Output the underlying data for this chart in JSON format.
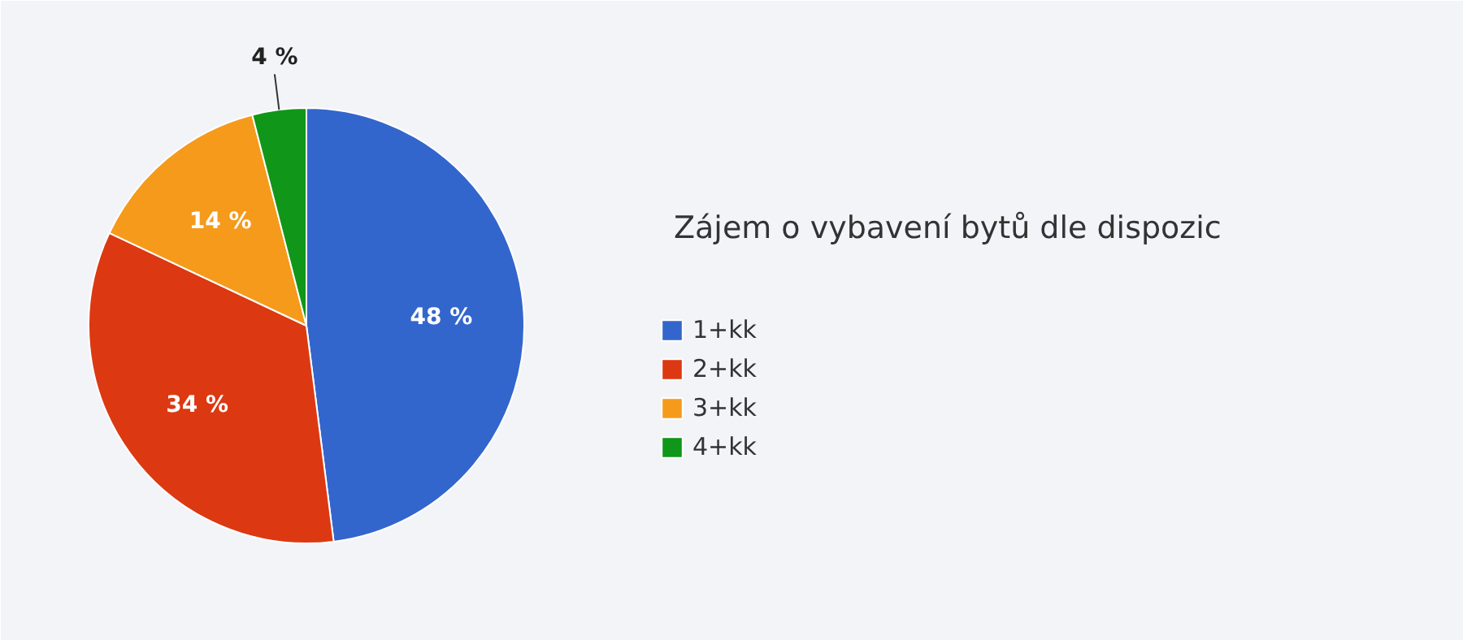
{
  "chart_data": {
    "type": "pie",
    "title": "Zájem o vybavení bytů dle dispozic",
    "categories": [
      "1+kk",
      "2+kk",
      "3+kk",
      "4+kk"
    ],
    "values": [
      48,
      34,
      14,
      4
    ],
    "colors": [
      "#3366cc",
      "#dc3912",
      "#f59a1b",
      "#109618"
    ],
    "value_labels": [
      "48 %",
      "34 %",
      "14 %",
      "4 %"
    ],
    "legend": "right"
  }
}
